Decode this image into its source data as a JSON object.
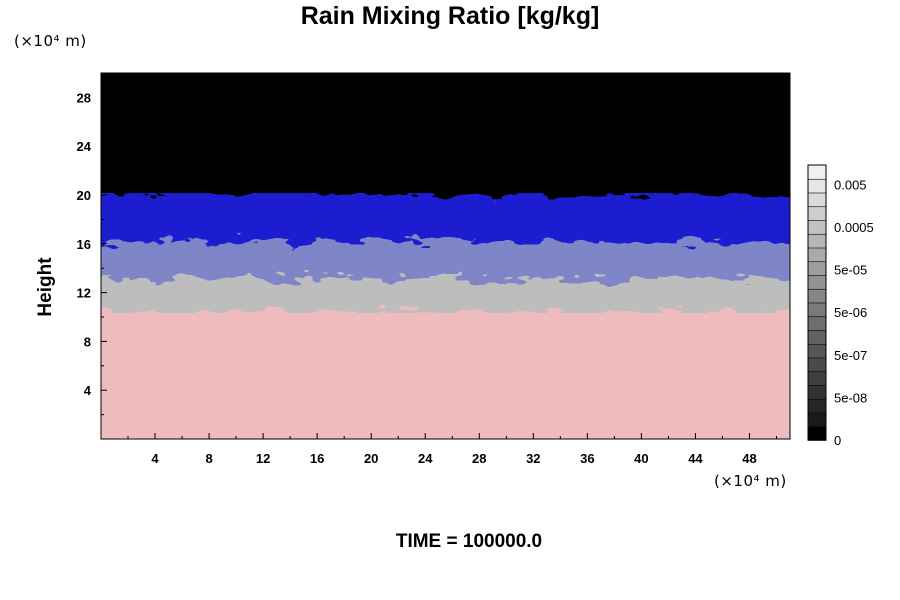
{
  "chart_data": {
    "type": "heatmap",
    "title": "Rain Mixing Ratio [kg/kg]",
    "ylabel": "Height",
    "y_unit": "(×10⁴ m)",
    "x_unit": "(×10⁴ m)",
    "x_ticks": [
      4,
      8,
      12,
      16,
      20,
      24,
      28,
      32,
      36,
      40,
      44,
      48
    ],
    "y_ticks": [
      4,
      8,
      12,
      16,
      20,
      24,
      28
    ],
    "xlim": [
      0,
      51
    ],
    "ylim": [
      0,
      30
    ],
    "colorbar": {
      "labels": [
        "0",
        "5e-08",
        "5e-07",
        "5e-06",
        "5e-05",
        "0.0005",
        "0.005"
      ],
      "colors": [
        "#000000",
        "#1a1a1a",
        "#262626",
        "#323232",
        "#3e3e3e",
        "#4a4a4a",
        "#565656",
        "#626262",
        "#6e6e6e",
        "#7a7a7a",
        "#868686",
        "#929292",
        "#9e9e9e",
        "#aaaaaa",
        "#b6b6b6",
        "#c2c2c2",
        "#cecece",
        "#dadada",
        "#e6e6e6",
        "#f0f0f0"
      ]
    },
    "layers": [
      {
        "name": "top",
        "y_from": 19.5,
        "y_to": 30,
        "color": "#000000"
      },
      {
        "name": "upper",
        "y_from": 15.5,
        "y_to": 19.5,
        "color": "#1a1ad0"
      },
      {
        "name": "mid",
        "y_from": 12.5,
        "y_to": 15.5,
        "color": "#7f86c8"
      },
      {
        "name": "lower",
        "y_from": 11,
        "y_to": 12.5,
        "color": "#bdbdbd"
      },
      {
        "name": "bottom",
        "y_from": 0,
        "y_to": 11,
        "color": "#eebcbc"
      }
    ],
    "time_label": "TIME = 100000.0"
  }
}
